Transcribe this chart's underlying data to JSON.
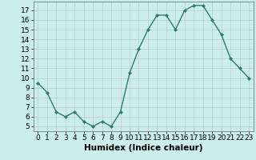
{
  "x": [
    0,
    1,
    2,
    3,
    4,
    5,
    6,
    7,
    8,
    9,
    10,
    11,
    12,
    13,
    14,
    15,
    16,
    17,
    18,
    19,
    20,
    21,
    22,
    23
  ],
  "y": [
    9.5,
    8.5,
    6.5,
    6.0,
    6.5,
    5.5,
    5.0,
    5.5,
    5.0,
    6.5,
    10.5,
    13.0,
    15.0,
    16.5,
    16.5,
    15.0,
    17.0,
    17.5,
    17.5,
    16.0,
    14.5,
    12.0,
    11.0,
    10.0
  ],
  "line_color": "#2d7d6e",
  "marker": "D",
  "marker_size": 2.0,
  "linewidth": 1.0,
  "xlabel": "Humidex (Indice chaleur)",
  "ylabel_ticks": [
    5,
    6,
    7,
    8,
    9,
    10,
    11,
    12,
    13,
    14,
    15,
    16,
    17
  ],
  "xlim": [
    -0.5,
    23.5
  ],
  "ylim": [
    4.5,
    17.9
  ],
  "background_color": "#cceee8",
  "grid_color": "#bbcccc",
  "xlabel_fontsize": 7.5,
  "tick_fontsize": 6.5
}
